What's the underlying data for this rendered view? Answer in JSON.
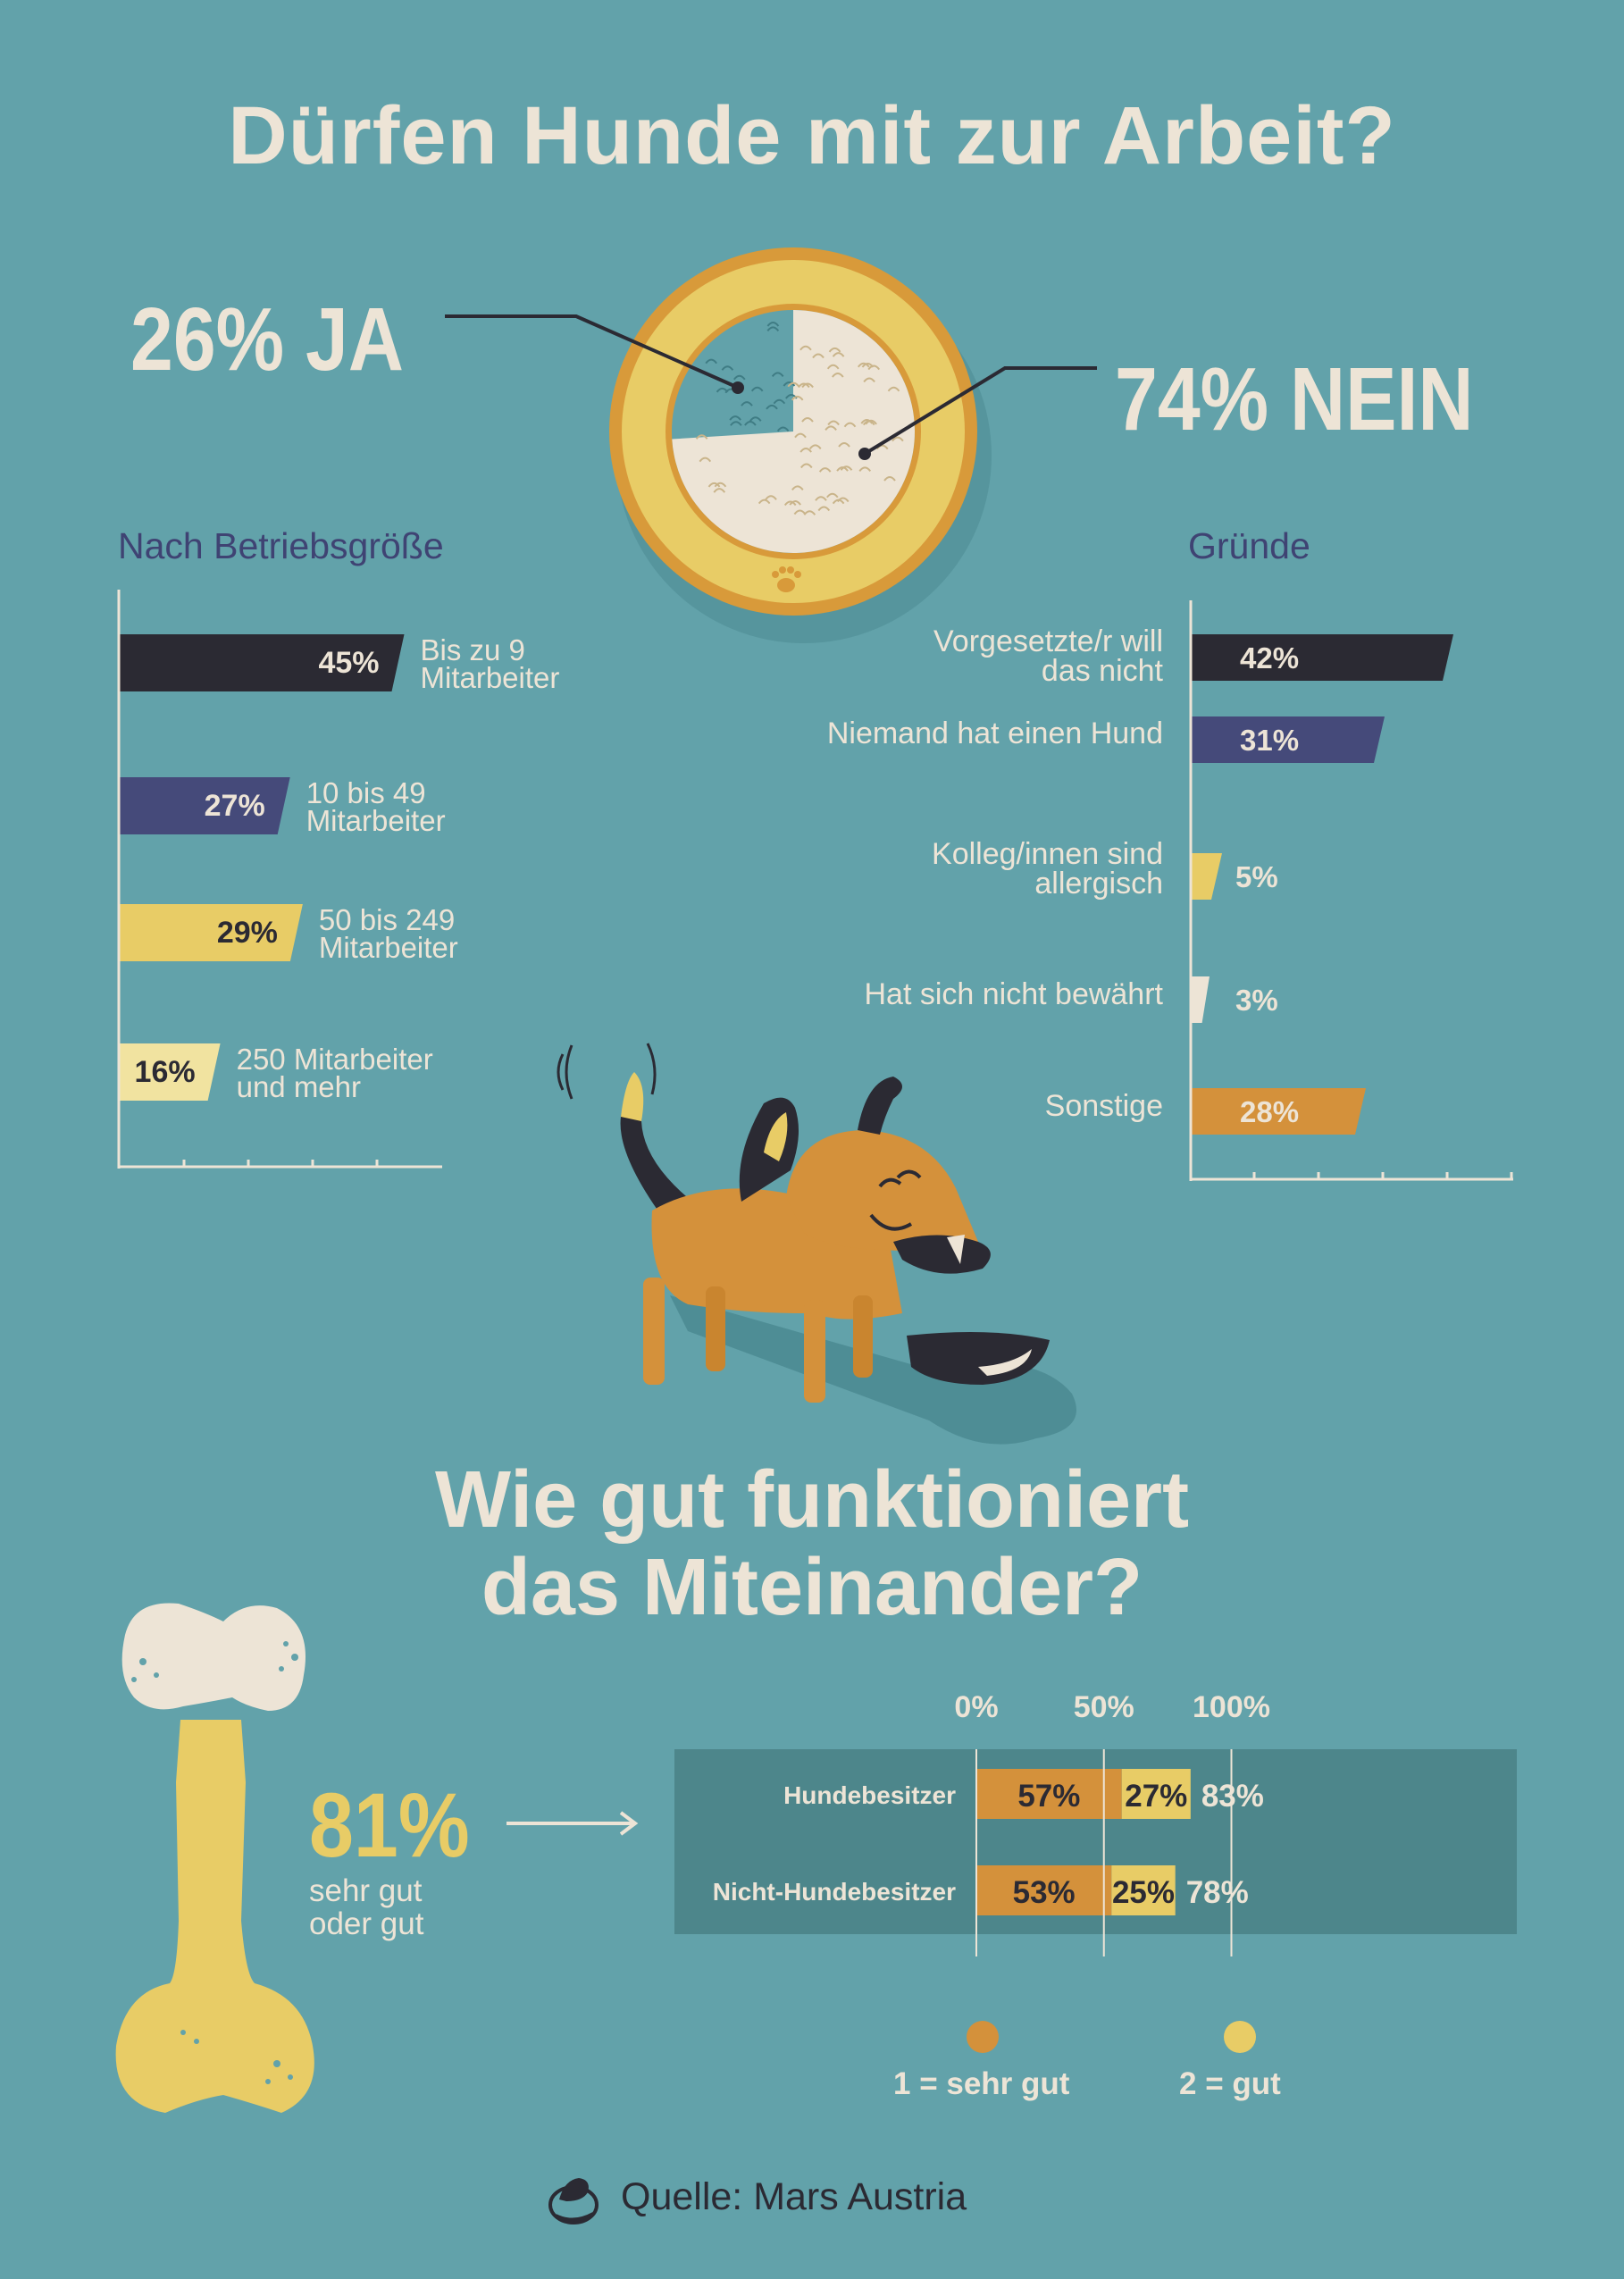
{
  "title": "Dürfen Hunde mit zur Arbeit?",
  "chart_data": [
    {
      "type": "pie",
      "title": "Dürfen Hunde mit zur Arbeit?",
      "slices": [
        {
          "label": "JA",
          "value": 26,
          "text": "26% JA"
        },
        {
          "label": "NEIN",
          "value": 74,
          "text": "74% NEIN"
        }
      ]
    },
    {
      "type": "bar",
      "orientation": "horizontal",
      "title": "Nach Betriebsgröße",
      "categories": [
        "Bis zu 9 Mitarbeiter",
        "10 bis 49 Mitarbeiter",
        "50 bis 249 Mitarbeiter",
        "250 Mitarbeiter und mehr"
      ],
      "category_lines": [
        [
          "Bis zu 9",
          "Mitarbeiter"
        ],
        [
          "10 bis 49",
          "Mitarbeiter"
        ],
        [
          "50 bis 249",
          "Mitarbeiter"
        ],
        [
          "250 Mitarbeiter",
          "und mehr"
        ]
      ],
      "values": [
        45,
        27,
        29,
        16
      ],
      "labels": [
        "45%",
        "27%",
        "29%",
        "16%"
      ],
      "colors": [
        "#2b2a33",
        "#454a7a",
        "#e8cc66",
        "#f1e3a0"
      ],
      "label_colors": [
        "#ede4d6",
        "#ede4d6",
        "#2b2a33",
        "#2b2a33"
      ],
      "xlim": [
        0,
        100
      ]
    },
    {
      "type": "bar",
      "orientation": "horizontal",
      "title": "Gründe",
      "categories": [
        "Vorgesetzte/r will das nicht",
        "Niemand hat einen Hund",
        "Kolleg/innen sind allergisch",
        "Hat sich nicht bewährt",
        "Sonstige"
      ],
      "category_lines": [
        [
          "Vorgesetzte/r will",
          "das nicht"
        ],
        [
          "Niemand hat einen Hund"
        ],
        [
          "Kolleg/innen sind",
          "allergisch"
        ],
        [
          "Hat sich nicht bewährt"
        ],
        [
          "Sonstige"
        ]
      ],
      "values": [
        42,
        31,
        5,
        3,
        28
      ],
      "labels": [
        "42%",
        "31%",
        "5%",
        "3%",
        "28%"
      ],
      "colors": [
        "#2b2a33",
        "#454a7a",
        "#e8cc66",
        "#ede4d6",
        "#d4913b"
      ],
      "xlim": [
        0,
        50
      ]
    },
    {
      "type": "bar",
      "orientation": "horizontal",
      "stacked": true,
      "title": "Wie gut funktioniert das Miteinander?",
      "categories": [
        "Hundebesitzer",
        "Nicht-Hundebesitzer"
      ],
      "series": [
        {
          "name": "1 = sehr gut",
          "values": [
            57,
            53
          ],
          "labels": [
            "57%",
            "53%"
          ],
          "color": "#d4913b"
        },
        {
          "name": "2 = gut",
          "values": [
            27,
            25
          ],
          "labels": [
            "27%",
            "25%"
          ],
          "color": "#e8cc66"
        }
      ],
      "totals": [
        "83%",
        "78%"
      ],
      "ticks": [
        "0%",
        "50%",
        "100%"
      ],
      "xlim": [
        0,
        100
      ]
    }
  ],
  "section2": {
    "line1": "Wie gut funktioniert",
    "line2": "das Miteinander?"
  },
  "highlight": {
    "value": "81%",
    "line1": "sehr gut",
    "line2": "oder gut"
  },
  "source": "Quelle: Mars Austria",
  "colors": {
    "background": "#62a2aa",
    "cream": "#ede4d6",
    "navy": "#3f4373",
    "dark": "#2b2a33",
    "yellow": "#e8cc66",
    "orange": "#d4913b"
  }
}
